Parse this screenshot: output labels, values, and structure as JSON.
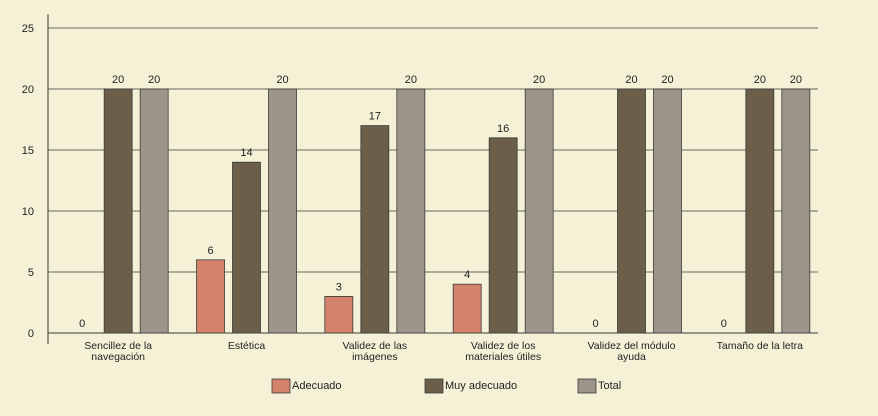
{
  "chart_data": {
    "type": "bar",
    "title": "",
    "xlabel": "",
    "ylabel": "",
    "ylim": [
      0,
      25
    ],
    "yticks": [
      "0",
      "5",
      "10",
      "15",
      "20",
      "25"
    ],
    "grid": true,
    "legend_placement": "bottom",
    "categories": [
      [
        "Sencillez de la",
        "navegación"
      ],
      [
        "Estética"
      ],
      [
        "Validez de las",
        "imágenes"
      ],
      [
        "Validez de los",
        "materiales útiles"
      ],
      [
        "Validez del módulo",
        "ayuda"
      ],
      [
        "Tamaño de la letra"
      ]
    ],
    "series": [
      {
        "name": "Adecuado",
        "color": "#d4826c",
        "values": [
          0,
          6,
          3,
          4,
          0,
          0
        ]
      },
      {
        "name": "Muy adecuado",
        "color": "#6b5f4a",
        "values": [
          20,
          14,
          17,
          16,
          20,
          20
        ]
      },
      {
        "name": "Total",
        "color": "#9d958a",
        "values": [
          20,
          20,
          20,
          20,
          20,
          20
        ]
      }
    ],
    "data_labels": [
      [
        "0",
        "6",
        "3",
        "4",
        "0",
        "0"
      ],
      [
        "20",
        "14",
        "17",
        "16",
        "20",
        "20"
      ],
      [
        "20",
        "20",
        "20",
        "20",
        "20",
        "20"
      ]
    ]
  }
}
